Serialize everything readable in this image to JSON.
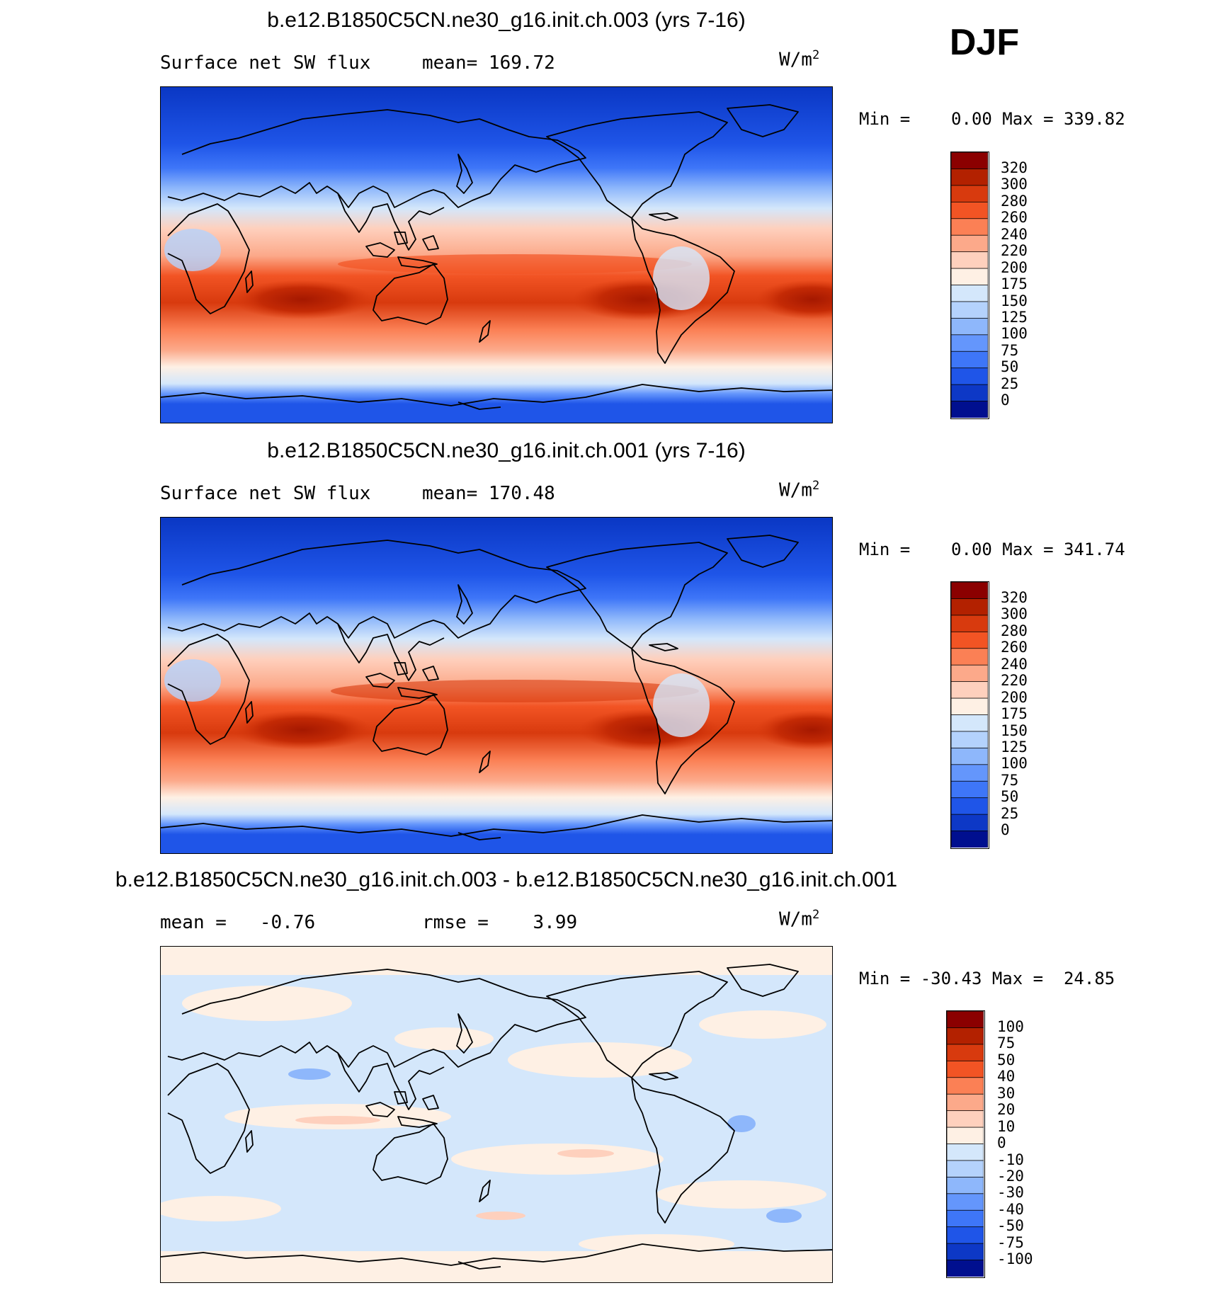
{
  "season": "DJF",
  "units": "W/m",
  "units_exp": "2",
  "panels": [
    {
      "title": "b.e12.B1850C5CN.ne30_g16.init.ch.003 (yrs 7-16)",
      "left_label": "Surface net SW flux",
      "right_label": "mean= 169.72",
      "minmax": "Min =    0.00 Max = 339.82",
      "colorbar": {
        "labels": [
          "320",
          "300",
          "280",
          "260",
          "240",
          "220",
          "200",
          "175",
          "150",
          "125",
          "100",
          "75",
          "50",
          "25",
          "0"
        ],
        "colors": [
          "#8b0000",
          "#b32100",
          "#d83a0e",
          "#f25424",
          "#fb8055",
          "#fca98a",
          "#fed0bd",
          "#fef0e4",
          "#d4e7fb",
          "#b4d2fc",
          "#8eb7fb",
          "#6496fc",
          "#3e76f8",
          "#1f55e8",
          "#0d38c6",
          "#000f8f"
        ]
      }
    },
    {
      "title": "b.e12.B1850C5CN.ne30_g16.init.ch.001 (yrs 7-16)",
      "left_label": "Surface net SW flux",
      "right_label": "mean= 170.48",
      "minmax": "Min =    0.00 Max = 341.74",
      "colorbar": {
        "labels": [
          "320",
          "300",
          "280",
          "260",
          "240",
          "220",
          "200",
          "175",
          "150",
          "125",
          "100",
          "75",
          "50",
          "25",
          "0"
        ],
        "colors": [
          "#8b0000",
          "#b32100",
          "#d83a0e",
          "#f25424",
          "#fb8055",
          "#fca98a",
          "#fed0bd",
          "#fef0e4",
          "#d4e7fb",
          "#b4d2fc",
          "#8eb7fb",
          "#6496fc",
          "#3e76f8",
          "#1f55e8",
          "#0d38c6",
          "#000f8f"
        ]
      }
    },
    {
      "title": "b.e12.B1850C5CN.ne30_g16.init.ch.003 - b.e12.B1850C5CN.ne30_g16.init.ch.001",
      "left_label": "mean =   -0.76",
      "right_label": "rmse =    3.99",
      "minmax": "Min = -30.43 Max =  24.85",
      "colorbar": {
        "labels": [
          "100",
          "75",
          "50",
          "40",
          "30",
          "20",
          "10",
          "0",
          "-10",
          "-20",
          "-30",
          "-40",
          "-50",
          "-75",
          "-100"
        ],
        "colors": [
          "#8b0000",
          "#b32100",
          "#d83a0e",
          "#f25424",
          "#fb8055",
          "#fca98a",
          "#fed0bd",
          "#fef0e4",
          "#d4e7fb",
          "#b4d2fc",
          "#8eb7fb",
          "#6496fc",
          "#3e76f8",
          "#1f55e8",
          "#0d38c6",
          "#000f8f"
        ]
      }
    }
  ]
}
